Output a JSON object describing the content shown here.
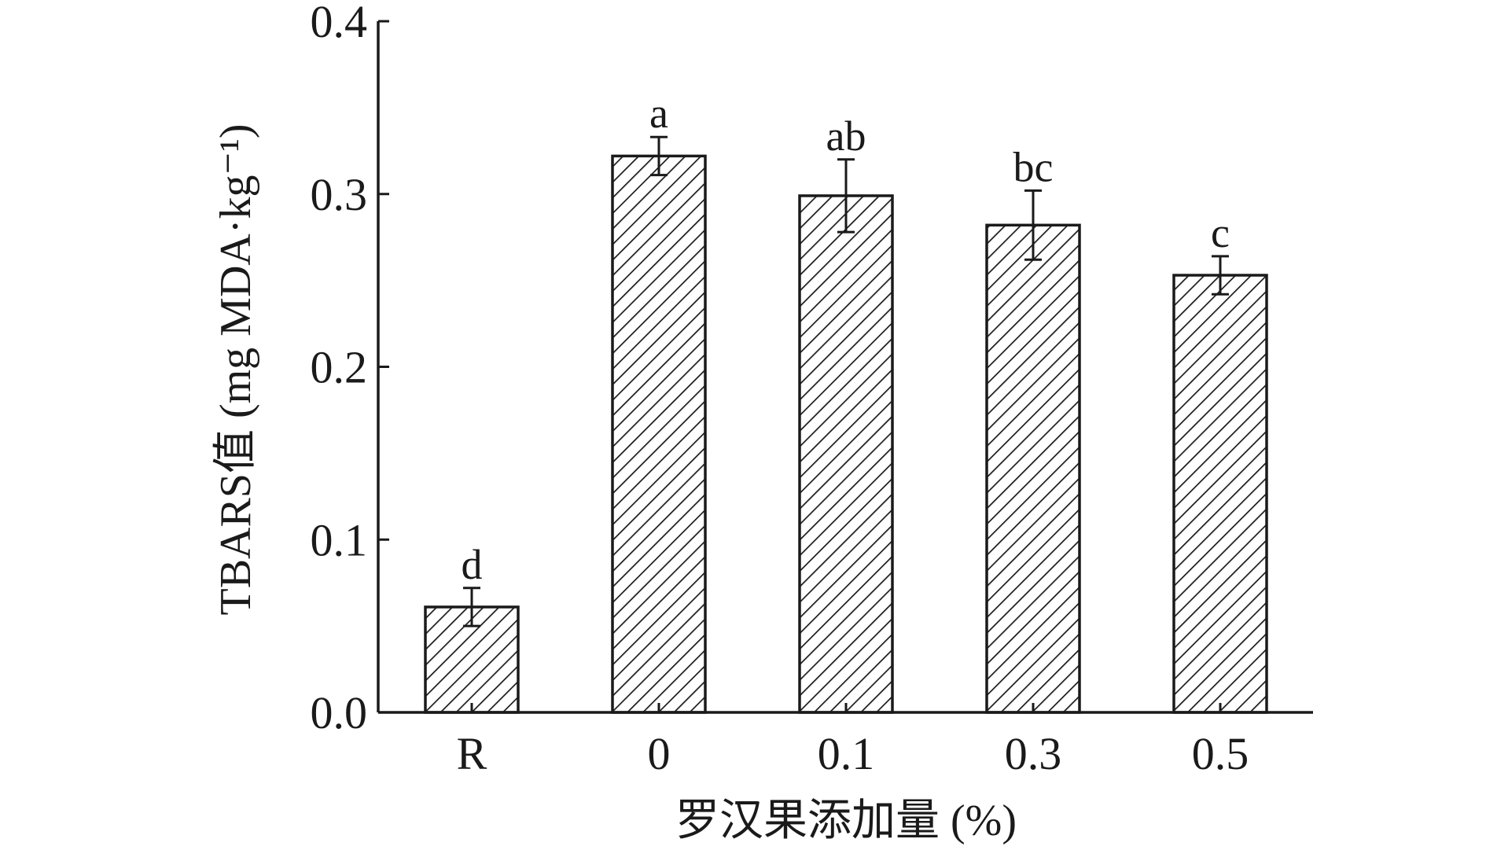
{
  "chart_data": {
    "type": "bar",
    "title": "",
    "xlabel": "罗汉果添加量 (%)",
    "ylabel": "TBARS值 (mg MDA·kg⁻¹)",
    "categories": [
      "R",
      "0",
      "0.1",
      "0.3",
      "0.5"
    ],
    "values": [
      0.061,
      0.322,
      0.299,
      0.282,
      0.253
    ],
    "errors": [
      0.011,
      0.011,
      0.021,
      0.02,
      0.011
    ],
    "significance": [
      "d",
      "a",
      "ab",
      "bc",
      "c"
    ],
    "ylim": [
      0.0,
      0.4
    ],
    "yticks": [
      "0.0",
      "0.1",
      "0.2",
      "0.3",
      "0.4"
    ],
    "ytick_values": [
      0.0,
      0.1,
      0.2,
      0.3,
      0.4
    ],
    "bar_fill": "hatched",
    "bar_color": "#1a1a1a",
    "grid": false,
    "legend": "none"
  }
}
